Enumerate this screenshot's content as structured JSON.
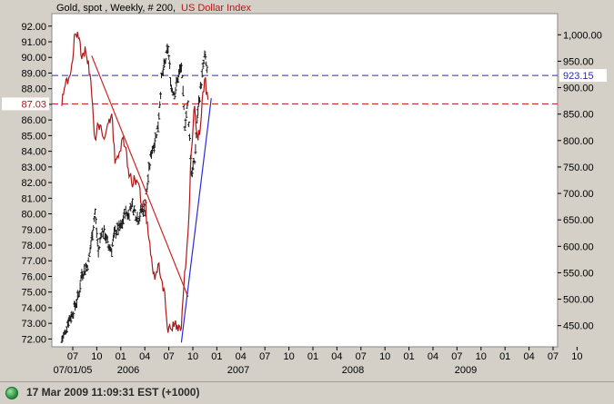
{
  "title": {
    "instrument": "Gold, spot , Weekly, # 200,",
    "overlay": "US Dollar Index"
  },
  "status": {
    "timestamp": "17 Mar 2009 11:09:31  EST (+1000)"
  },
  "colors": {
    "frame_bg": "#d4d0c8",
    "plot_bg": "#ffffff",
    "gold_bars": "#1a1a1a",
    "usd_line": "#b01818",
    "trendline_down": "#c82828",
    "trendline_up": "#2a2ae0",
    "hline_blue": "#2a2ab8",
    "hline_red": "#b01818"
  },
  "chart_data": {
    "type": "line",
    "title": "Gold, spot , Weekly, # 200, US Dollar Index",
    "x_ticks": [
      "07",
      "10",
      "01",
      "04",
      "07",
      "10",
      "01",
      "04",
      "07",
      "10",
      "01",
      "04",
      "07",
      "10",
      "01",
      "04",
      "07",
      "10",
      "01",
      "04",
      "07",
      "10"
    ],
    "x_year_labels": [
      "07/01/05",
      "2006",
      "2007",
      "2008",
      "2009"
    ],
    "left_axis": {
      "label": "US Dollar Index",
      "ticks": [
        "92.00",
        "91.00",
        "90.00",
        "89.00",
        "88.00",
        "87.00",
        "86.00",
        "85.00",
        "84.00",
        "83.00",
        "82.00",
        "81.00",
        "80.00",
        "79.00",
        "78.00",
        "77.00",
        "76.00",
        "75.00",
        "74.00",
        "73.00",
        "72.00"
      ],
      "range": [
        71.5,
        92.8
      ]
    },
    "right_axis": {
      "label": "Gold, spot",
      "ticks": [
        "1,000.00",
        "950.00",
        "900.00",
        "850.00",
        "800.00",
        "750.00",
        "700.00",
        "650.00",
        "600.00",
        "550.00",
        "500.00",
        "450.00"
      ],
      "range": [
        410,
        1040
      ]
    },
    "series": [
      {
        "name": "Gold, spot",
        "axis": "right",
        "style": "ohlc-bars",
        "points": [
          [
            "2005-07",
            424
          ],
          [
            "2005-08",
            436
          ],
          [
            "2005-09",
            462
          ],
          [
            "2005-10",
            470
          ],
          [
            "2005-11",
            488
          ],
          [
            "2005-12",
            505
          ],
          [
            "2006-01",
            549
          ],
          [
            "2006-02",
            556
          ],
          [
            "2006-03",
            570
          ],
          [
            "2006-04",
            616
          ],
          [
            "2006-05",
            665
          ],
          [
            "2006-06",
            588
          ],
          [
            "2006-07",
            630
          ],
          [
            "2006-08",
            624
          ],
          [
            "2006-09",
            600
          ],
          [
            "2006-10",
            595
          ],
          [
            "2006-11",
            628
          ],
          [
            "2006-12",
            632
          ],
          [
            "2007-01",
            638
          ],
          [
            "2007-02",
            665
          ],
          [
            "2007-03",
            660
          ],
          [
            "2007-04",
            680
          ],
          [
            "2007-05",
            665
          ],
          [
            "2007-06",
            652
          ],
          [
            "2007-07",
            668
          ],
          [
            "2007-08",
            670
          ],
          [
            "2007-09",
            730
          ],
          [
            "2007-10",
            780
          ],
          [
            "2007-11",
            800
          ],
          [
            "2007-12",
            830
          ],
          [
            "2008-01",
            915
          ],
          [
            "2008-02",
            945
          ],
          [
            "2008-03",
            975
          ],
          [
            "2008-04",
            900
          ],
          [
            "2008-05",
            890
          ],
          [
            "2008-06",
            920
          ],
          [
            "2008-07",
            940
          ],
          [
            "2008-08",
            830
          ],
          [
            "2008-09",
            870
          ],
          [
            "2008-10",
            740
          ],
          [
            "2008-11",
            760
          ],
          [
            "2008-12",
            860
          ],
          [
            "2009-01",
            910
          ],
          [
            "2009-02",
            960
          ],
          [
            "2009-03",
            925
          ]
        ]
      },
      {
        "name": "US Dollar Index",
        "axis": "left",
        "style": "line",
        "points": [
          [
            "2005-07",
            86.9
          ],
          [
            "2005-08",
            88.2
          ],
          [
            "2005-09",
            88.6
          ],
          [
            "2005-10",
            89.6
          ],
          [
            "2005-11",
            91.5
          ],
          [
            "2005-12",
            91.2
          ],
          [
            "2006-01",
            89.9
          ],
          [
            "2006-02",
            90.7
          ],
          [
            "2006-03",
            89.8
          ],
          [
            "2006-04",
            87.6
          ],
          [
            "2006-05",
            84.8
          ],
          [
            "2006-06",
            85.7
          ],
          [
            "2006-07",
            85.3
          ],
          [
            "2006-08",
            84.9
          ],
          [
            "2006-09",
            85.8
          ],
          [
            "2006-10",
            86.4
          ],
          [
            "2006-11",
            83.2
          ],
          [
            "2006-12",
            83.6
          ],
          [
            "2007-01",
            84.7
          ],
          [
            "2007-02",
            84.3
          ],
          [
            "2007-03",
            82.9
          ],
          [
            "2007-04",
            82.0
          ],
          [
            "2007-05",
            82.2
          ],
          [
            "2007-06",
            82.0
          ],
          [
            "2007-07",
            80.6
          ],
          [
            "2007-08",
            80.9
          ],
          [
            "2007-09",
            78.7
          ],
          [
            "2007-10",
            77.2
          ],
          [
            "2007-11",
            75.8
          ],
          [
            "2007-12",
            76.8
          ],
          [
            "2008-01",
            75.8
          ],
          [
            "2008-02",
            75.0
          ],
          [
            "2008-03",
            72.4
          ],
          [
            "2008-04",
            72.6
          ],
          [
            "2008-05",
            73.0
          ],
          [
            "2008-06",
            72.5
          ],
          [
            "2008-07",
            72.7
          ],
          [
            "2008-08",
            76.3
          ],
          [
            "2008-09",
            78.8
          ],
          [
            "2008-10",
            84.0
          ],
          [
            "2008-11",
            86.9
          ],
          [
            "2008-12",
            84.7
          ],
          [
            "2009-01",
            86.2
          ],
          [
            "2009-02",
            88.6
          ],
          [
            "2009-03",
            87.3
          ]
        ]
      }
    ],
    "annotations": [
      {
        "type": "hline",
        "axis": "right",
        "value": 923.15,
        "label": "923.15",
        "color": "#2a2ab8",
        "style": "dashed"
      },
      {
        "type": "hline",
        "axis": "left",
        "value": 87.03,
        "label": "87.03",
        "color": "#b01818",
        "style": "dashed"
      },
      {
        "type": "trendline",
        "axis": "left",
        "color": "#c82828",
        "from": [
          "2006-04",
          90.1
        ],
        "to": [
          "2008-09",
          74.7
        ]
      },
      {
        "type": "trendline",
        "axis": "right",
        "color": "#2a2ae0",
        "from": [
          "2008-07",
          418
        ],
        "to": [
          "2009-04",
          880
        ]
      }
    ],
    "grid": false,
    "legend": "none"
  }
}
